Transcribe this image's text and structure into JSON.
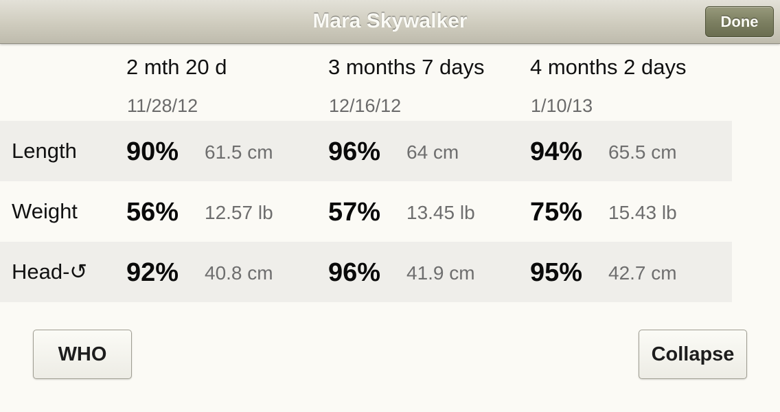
{
  "navbar": {
    "title": "Mara Skywalker",
    "done_label": "Done"
  },
  "columns": [
    {
      "age": "2 mth 20 d",
      "date": "11/28/12"
    },
    {
      "age": "3 months 7 days",
      "date": "12/16/12"
    },
    {
      "age": "4 months 2 days",
      "date": "1/10/13"
    }
  ],
  "rows": [
    {
      "label": "Length",
      "values": [
        {
          "percentile": "90%",
          "measurement": "61.5 cm"
        },
        {
          "percentile": "96%",
          "measurement": "64 cm"
        },
        {
          "percentile": "94%",
          "measurement": "65.5 cm"
        }
      ]
    },
    {
      "label": "Weight",
      "values": [
        {
          "percentile": "56%",
          "measurement": "12.57 lb"
        },
        {
          "percentile": "57%",
          "measurement": "13.45 lb"
        },
        {
          "percentile": "75%",
          "measurement": "15.43 lb"
        }
      ]
    },
    {
      "label": "Head-↺",
      "values": [
        {
          "percentile": "92%",
          "measurement": "40.8 cm"
        },
        {
          "percentile": "96%",
          "measurement": "41.9 cm"
        },
        {
          "percentile": "95%",
          "measurement": "42.7 cm"
        }
      ]
    }
  ],
  "buttons": {
    "who_label": "WHO",
    "collapse_label": "Collapse"
  }
}
